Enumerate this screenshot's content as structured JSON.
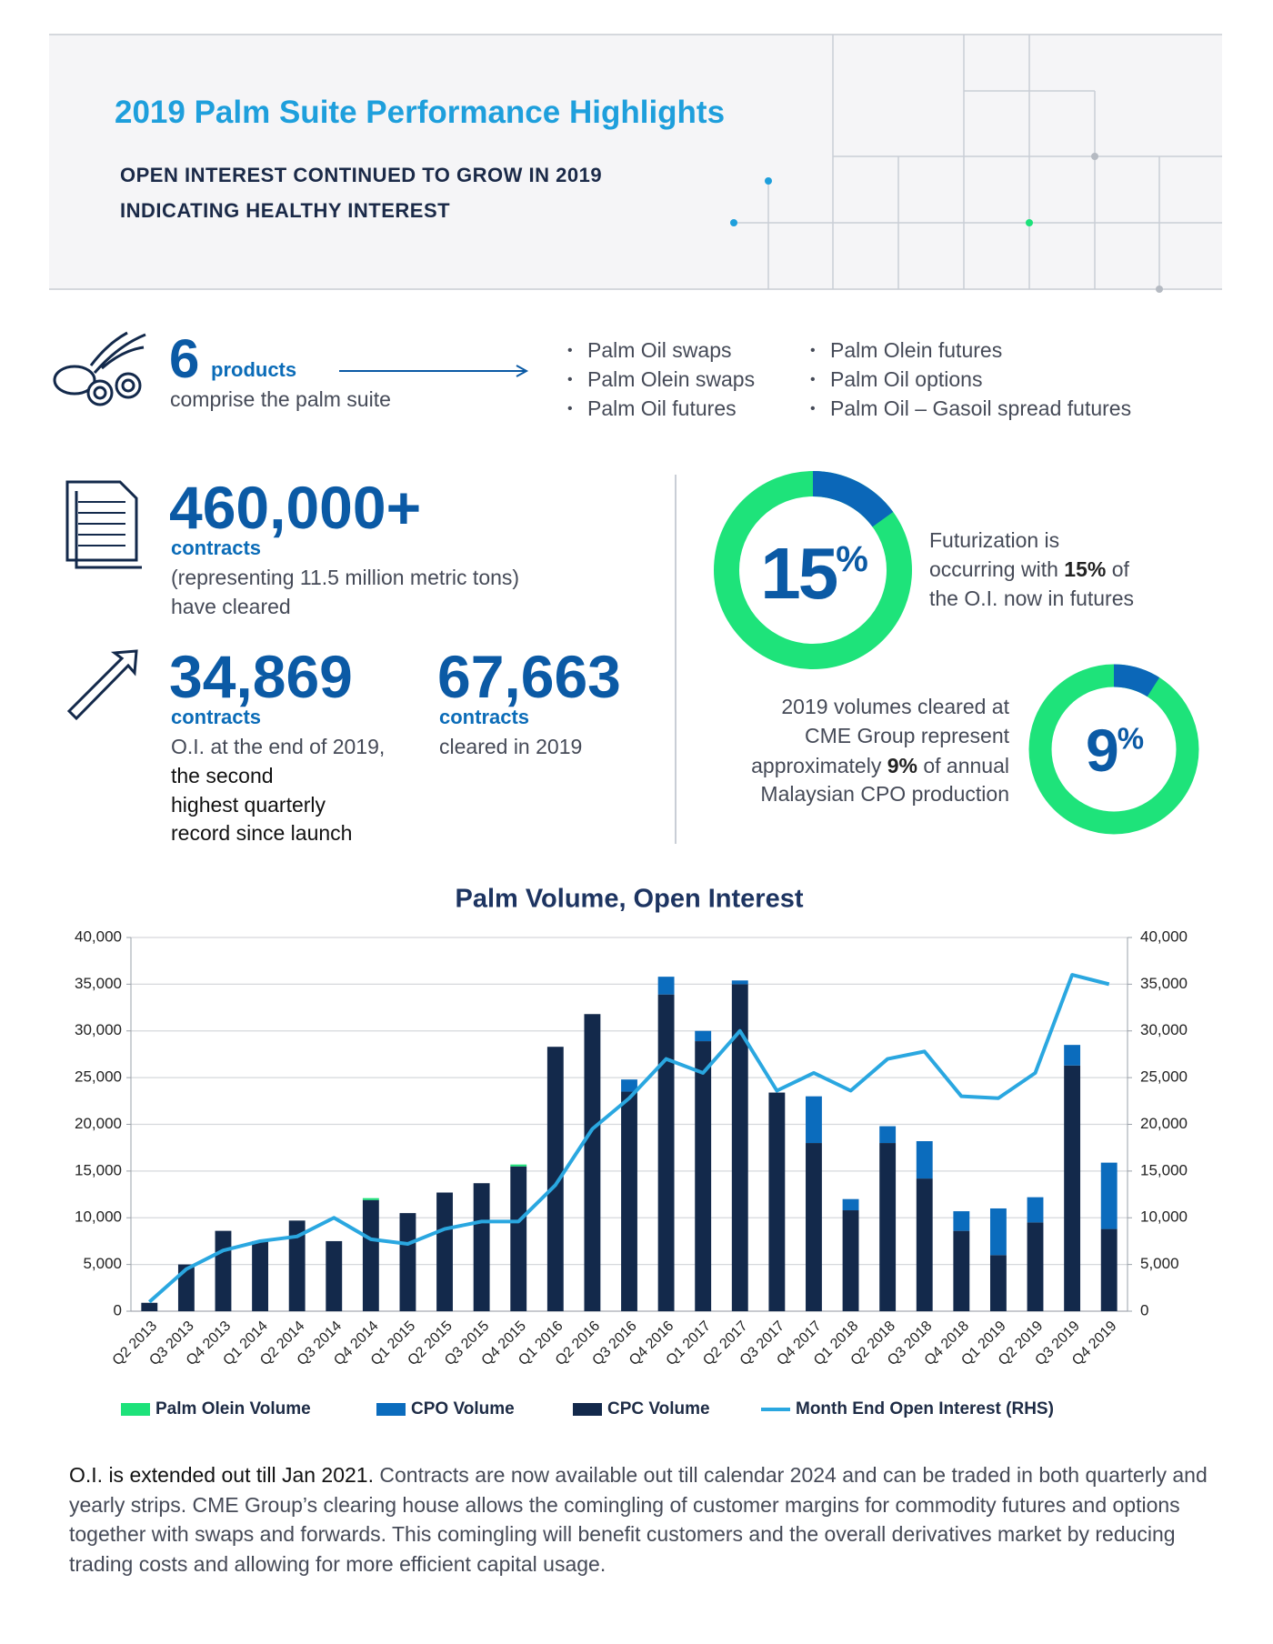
{
  "header": {
    "title": "2019 Palm Suite Performance Highlights",
    "subtitle": [
      "OPEN INTEREST CONTINUED TO GROW IN 2019",
      "INDICATING HEALTHY INTEREST"
    ]
  },
  "products": {
    "count": "6",
    "unit": "products",
    "caption": "comprise the palm suite",
    "list": [
      "Palm Oil swaps",
      "Palm Olein swaps",
      "Palm Oil futures",
      "Palm Olein futures",
      "Palm Oil options",
      "Palm Oil – Gasoil spread futures"
    ]
  },
  "cleared": {
    "value": "460,000+",
    "unit": "contracts",
    "text": [
      "(representing 11.5 million metric tons)",
      "have cleared"
    ]
  },
  "open_interest": {
    "value": "34,869",
    "unit": "contracts",
    "text": [
      "O.I. at the end of 2019,",
      "the second",
      "highest quarterly",
      "record since launch"
    ]
  },
  "cleared_2019": {
    "value": "67,663",
    "unit": "contracts",
    "text": [
      "cleared in 2019"
    ]
  },
  "futurization": {
    "value": 15,
    "unit": "%",
    "text": [
      "Futurization is",
      "occurring with ",
      "15%",
      " of",
      "the O.I. now in futures"
    ]
  },
  "production": {
    "value": 9,
    "unit": "%",
    "text": [
      "2019 volumes cleared at",
      "CME Group represent",
      "approximately ",
      "9%",
      " of annual",
      "Malaysian CPO production"
    ]
  },
  "chart_data": {
    "type": "bar",
    "title": "Palm Volume, Open Interest",
    "categories": [
      "Q2 2013",
      "Q3 2013",
      "Q4 2013",
      "Q1 2014",
      "Q2 2014",
      "Q3 2014",
      "Q4 2014",
      "Q1 2015",
      "Q2 2015",
      "Q3 2015",
      "Q4 2015",
      "Q1 2016",
      "Q2 2016",
      "Q3 2016",
      "Q4 2016",
      "Q1 2017",
      "Q2 2017",
      "Q3 2017",
      "Q4 2017",
      "Q1 2018",
      "Q2 2018",
      "Q3 2018",
      "Q4 2018",
      "Q1 2019",
      "Q2 2019",
      "Q3 2019",
      "Q4 2019"
    ],
    "series": [
      {
        "name": "Palm Olein Volume",
        "color": "#1de27a",
        "type": "bar",
        "values": [
          0,
          0,
          0,
          0,
          0,
          0,
          200,
          0,
          0,
          0,
          200,
          0,
          0,
          0,
          0,
          0,
          0,
          0,
          0,
          0,
          0,
          0,
          0,
          0,
          0,
          0,
          0
        ]
      },
      {
        "name": "CPO Volume",
        "color": "#0b6cbd",
        "type": "bar",
        "values": [
          0,
          0,
          0,
          0,
          0,
          0,
          0,
          0,
          0,
          0,
          0,
          0,
          0,
          1300,
          1900,
          1100,
          400,
          0,
          5000,
          1200,
          1800,
          4000,
          2100,
          5000,
          2700,
          2200,
          7100
        ]
      },
      {
        "name": "CPC Volume",
        "color": "#13294b",
        "type": "bar",
        "values": [
          900,
          5000,
          8600,
          7500,
          9700,
          7500,
          11900,
          10500,
          12700,
          13700,
          15500,
          28300,
          31800,
          23500,
          33900,
          28900,
          35000,
          23400,
          18000,
          10800,
          18000,
          14200,
          8600,
          6000,
          9500,
          26300,
          8800
        ]
      },
      {
        "name": "Month End Open Interest (RHS)",
        "color": "#2aa7e0",
        "type": "line",
        "axis": "y2",
        "values": [
          1000,
          4500,
          6500,
          7500,
          8000,
          10000,
          7700,
          7200,
          8800,
          9600,
          9600,
          13500,
          19500,
          22800,
          27000,
          25500,
          30000,
          23600,
          25500,
          23600,
          27000,
          27800,
          23000,
          22800,
          25500,
          36000,
          35000
        ]
      }
    ],
    "ylim": [
      0,
      40000
    ],
    "yticks": [
      0,
      {
        "value": 5000,
        "label": "5,000"
      },
      {
        "value": 10000,
        "label": "10,000"
      },
      {
        "value": 15000,
        "label": "15,000"
      },
      {
        "value": 20000,
        "label": "20,000"
      },
      {
        "value": 25000,
        "label": "25,000"
      },
      {
        "value": 30000,
        "label": "30,000"
      },
      {
        "value": 35000,
        "label": "35,000"
      },
      {
        "value": 40000,
        "label": "40,000"
      }
    ],
    "y2lim": [
      0,
      40000
    ],
    "y2ticks": [
      0,
      {
        "value": 5000,
        "label": "5,000"
      },
      {
        "value": 10000,
        "label": "10,000"
      },
      {
        "value": 15000,
        "label": "15,000"
      },
      {
        "value": 20000,
        "label": "20,000"
      },
      {
        "value": 25000,
        "label": "25,000"
      },
      {
        "value": 30000,
        "label": "30,000"
      },
      {
        "value": 35000,
        "label": "35,000"
      },
      {
        "value": 40000,
        "label": "40,000"
      }
    ],
    "grid": true,
    "legend": "bottom"
  },
  "footer": {
    "lead": "O.I. is extended out till Jan 2021.",
    "body": " Contracts are now available out till calendar 2024 and can be traded in both quarterly and yearly strips. CME Group’s clearing house allows the comingling of customer margins for commodity futures and options together with swaps and forwards. This comingling will benefit customers and the overall derivatives market by reducing trading costs and allowing for more efficient capital usage."
  }
}
